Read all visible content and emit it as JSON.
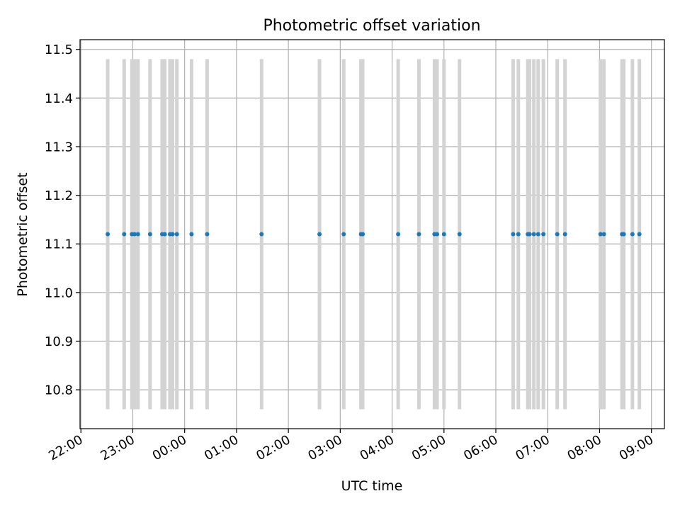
{
  "chart_data": {
    "type": "scatter",
    "title": "Photometric offset variation",
    "xlabel": "UTC time",
    "ylabel": "Photometric offset",
    "xlim": [
      "21:59",
      "09:15"
    ],
    "ylim": [
      10.72,
      11.52
    ],
    "grid": true,
    "x_ticks": [
      "22:00",
      "23:00",
      "00:00",
      "01:00",
      "02:00",
      "03:00",
      "04:00",
      "05:00",
      "06:00",
      "07:00",
      "08:00",
      "09:00"
    ],
    "y_ticks": [
      "10.8",
      "10.9",
      "11.0",
      "11.1",
      "11.2",
      "11.3",
      "11.4",
      "11.5"
    ],
    "band_y_range": [
      10.76,
      11.48
    ],
    "band_color": "#d3d3d3",
    "point_color": "#1f77b4",
    "points": [
      {
        "x": "22:31",
        "y": 11.12
      },
      {
        "x": "22:50",
        "y": 11.12
      },
      {
        "x": "22:59",
        "y": 11.12
      },
      {
        "x": "23:02",
        "y": 11.12
      },
      {
        "x": "23:06",
        "y": 11.12
      },
      {
        "x": "23:20",
        "y": 11.12
      },
      {
        "x": "23:34",
        "y": 11.12
      },
      {
        "x": "23:37",
        "y": 11.12
      },
      {
        "x": "23:43",
        "y": 11.12
      },
      {
        "x": "23:46",
        "y": 11.12
      },
      {
        "x": "23:51",
        "y": 11.12
      },
      {
        "x": "00:08",
        "y": 11.12
      },
      {
        "x": "00:26",
        "y": 11.12
      },
      {
        "x": "01:29",
        "y": 11.12
      },
      {
        "x": "02:36",
        "y": 11.12
      },
      {
        "x": "03:04",
        "y": 11.12
      },
      {
        "x": "03:24",
        "y": 11.12
      },
      {
        "x": "03:26",
        "y": 11.12
      },
      {
        "x": "04:07",
        "y": 11.12
      },
      {
        "x": "04:31",
        "y": 11.12
      },
      {
        "x": "04:49",
        "y": 11.12
      },
      {
        "x": "04:52",
        "y": 11.12
      },
      {
        "x": "05:00",
        "y": 11.12
      },
      {
        "x": "05:18",
        "y": 11.12
      },
      {
        "x": "06:20",
        "y": 11.12
      },
      {
        "x": "06:26",
        "y": 11.12
      },
      {
        "x": "06:37",
        "y": 11.12
      },
      {
        "x": "06:39",
        "y": 11.12
      },
      {
        "x": "06:44",
        "y": 11.12
      },
      {
        "x": "06:49",
        "y": 11.12
      },
      {
        "x": "06:55",
        "y": 11.12
      },
      {
        "x": "07:11",
        "y": 11.12
      },
      {
        "x": "07:20",
        "y": 11.12
      },
      {
        "x": "08:01",
        "y": 11.12
      },
      {
        "x": "08:05",
        "y": 11.12
      },
      {
        "x": "08:26",
        "y": 11.12
      },
      {
        "x": "08:28",
        "y": 11.12
      },
      {
        "x": "08:38",
        "y": 11.12
      },
      {
        "x": "08:46",
        "y": 11.12
      }
    ]
  }
}
